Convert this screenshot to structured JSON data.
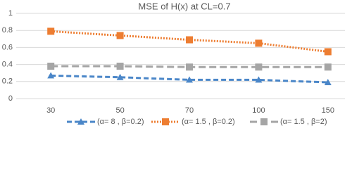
{
  "chart_data": {
    "type": "line",
    "title": "MSE of  H(x) at CL=0.7",
    "categories": [
      "30",
      "50",
      "70",
      "100",
      "150"
    ],
    "series": [
      {
        "name": "(α= 8 , β=0.2)",
        "color": "#4a86c8",
        "marker": "triangle",
        "dash": "dashed",
        "values": [
          0.27,
          0.25,
          0.22,
          0.22,
          0.19
        ]
      },
      {
        "name": "(α= 1.5 , β=0.2)",
        "color": "#ed7d31",
        "marker": "square",
        "dash": "dotted",
        "values": [
          0.79,
          0.74,
          0.69,
          0.65,
          0.55
        ]
      },
      {
        "name": "(α= 1.5 , β=2)",
        "color": "#a5a5a5",
        "marker": "square",
        "dash": "long-dashed",
        "values": [
          0.38,
          0.38,
          0.37,
          0.37,
          0.37
        ]
      }
    ],
    "ylim": [
      0,
      1
    ],
    "yticks": [
      0,
      0.2,
      0.4,
      0.6,
      0.8,
      1
    ],
    "grid": true,
    "legend": "bottom"
  }
}
